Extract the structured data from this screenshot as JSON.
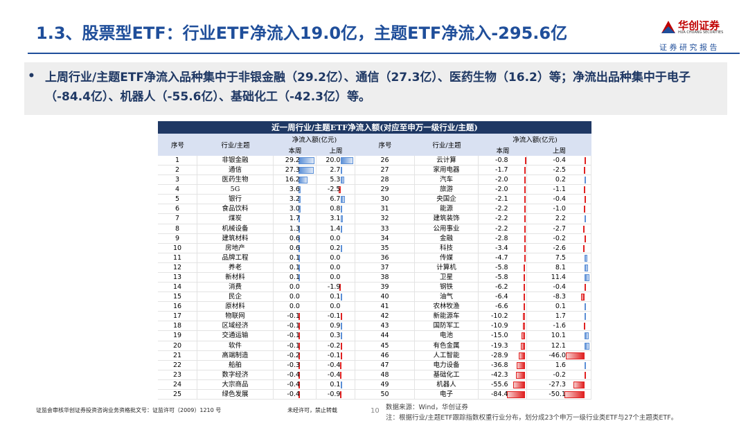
{
  "header": {
    "title": "1.3、股票型ETF：行业ETF净流入19.0亿，主题ETF净流入-295.6亿",
    "logo_name": "华创证券",
    "logo_en": "HUA CHUANG SECURITIES",
    "subtitle": "证 券 研 究 报 告"
  },
  "bullet": "上周行业/主题ETF净流入品种集中于非银金融（29.2亿）、通信（27.3亿）、医药生物（16.2）等；净流出品种集中于电子（-84.4亿）、机器人（-55.6亿）、基础化工（-42.3亿）等。",
  "table": {
    "title": "近一周行业/主题ETF净流入额(对应至申万一级行业/主题)",
    "columns": [
      "序号",
      "行业/主题",
      "净流入额(亿元)",
      "本周",
      "上周"
    ],
    "rows": [
      [
        1,
        "非银金融",
        "29.2",
        "20.0"
      ],
      [
        2,
        "通信",
        "27.3",
        "2.7"
      ],
      [
        3,
        "医药生物",
        "16.2",
        "5.3"
      ],
      [
        4,
        "5G",
        "3.6",
        "-2.5"
      ],
      [
        5,
        "银行",
        "3.2",
        "6.7"
      ],
      [
        6,
        "食品饮料",
        "3.0",
        "0.8"
      ],
      [
        7,
        "煤炭",
        "1.7",
        "3.1"
      ],
      [
        8,
        "机械设备",
        "1.3",
        "1.4"
      ],
      [
        9,
        "建筑材料",
        "0.6",
        "0.0"
      ],
      [
        10,
        "房地产",
        "0.6",
        "0.2"
      ],
      [
        11,
        "品牌工程",
        "0.1",
        "0.0"
      ],
      [
        12,
        "养老",
        "0.1",
        "0.0"
      ],
      [
        13,
        "新材料",
        "0.1",
        "0.0"
      ],
      [
        14,
        "消费",
        "0.0",
        "-1.9"
      ],
      [
        15,
        "民企",
        "0.0",
        "0.1"
      ],
      [
        16,
        "原材料",
        "0.0",
        "0.0"
      ],
      [
        17,
        "物联网",
        "-0.1",
        "-0.1"
      ],
      [
        18,
        "区域经济",
        "-0.1",
        "0.9"
      ],
      [
        19,
        "交通运输",
        "-0.1",
        "0.3"
      ],
      [
        20,
        "软件",
        "-0.1",
        "-0.2"
      ],
      [
        21,
        "高端制造",
        "-0.2",
        "-0.1"
      ],
      [
        22,
        "船舶",
        "-0.3",
        "-0.4"
      ],
      [
        23,
        "数字经济",
        "-0.4",
        "-0.4"
      ],
      [
        24,
        "大宗商品",
        "-0.4",
        "0.1"
      ],
      [
        25,
        "绿色发展",
        "-0.4",
        "-0.9"
      ],
      [
        26,
        "云计算",
        "-0.8",
        "-0.4"
      ],
      [
        27,
        "家用电器",
        "-1.7",
        "-2.5"
      ],
      [
        28,
        "汽车",
        "-2.0",
        "0.2"
      ],
      [
        29,
        "旅游",
        "-2.0",
        "-1.1"
      ],
      [
        30,
        "央国企",
        "-2.1",
        "-0.4"
      ],
      [
        31,
        "能源",
        "-2.2",
        "-1.0"
      ],
      [
        32,
        "建筑装饰",
        "-2.2",
        "2.2"
      ],
      [
        33,
        "公用事业",
        "-2.2",
        "-2.7"
      ],
      [
        34,
        "金融",
        "-2.8",
        "-0.2"
      ],
      [
        35,
        "科技",
        "-3.4",
        "-2.6"
      ],
      [
        36,
        "传媒",
        "-4.7",
        "7.5"
      ],
      [
        37,
        "计算机",
        "-5.8",
        "8.1"
      ],
      [
        38,
        "卫星",
        "-5.8",
        "11.4"
      ],
      [
        39,
        "钢铁",
        "-6.2",
        "-0.4"
      ],
      [
        40,
        "油气",
        "-6.4",
        "-8.3"
      ],
      [
        41,
        "农林牧渔",
        "-6.6",
        "0.1"
      ],
      [
        42,
        "新能源车",
        "-10.2",
        "1.7"
      ],
      [
        43,
        "国防军工",
        "-10.9",
        "-1.6"
      ],
      [
        44,
        "电池",
        "-15.0",
        "10.1"
      ],
      [
        45,
        "有色金属",
        "-19.3",
        "12.1"
      ],
      [
        46,
        "人工智能",
        "-28.9",
        "-46.0"
      ],
      [
        47,
        "电力设备",
        "-36.8",
        "1.6"
      ],
      [
        48,
        "基础化工",
        "-42.3",
        "-0.2"
      ],
      [
        49,
        "机器人",
        "-55.6",
        "-27.3"
      ],
      [
        50,
        "电子",
        "-84.4",
        "-50.1"
      ]
    ]
  },
  "footer": {
    "license": "证监会审核华创证券投资咨询业务资格批文号：证监许可（2009）1210 号",
    "notice": "未经许可，禁止转载",
    "page": "10",
    "source": "数据来源：Wind，华创证券",
    "note": "注：根据行业/主题ETF跟踪指数权重行业分布，划分成23个申万一级行业类ETF与27个主题类ETF。"
  }
}
